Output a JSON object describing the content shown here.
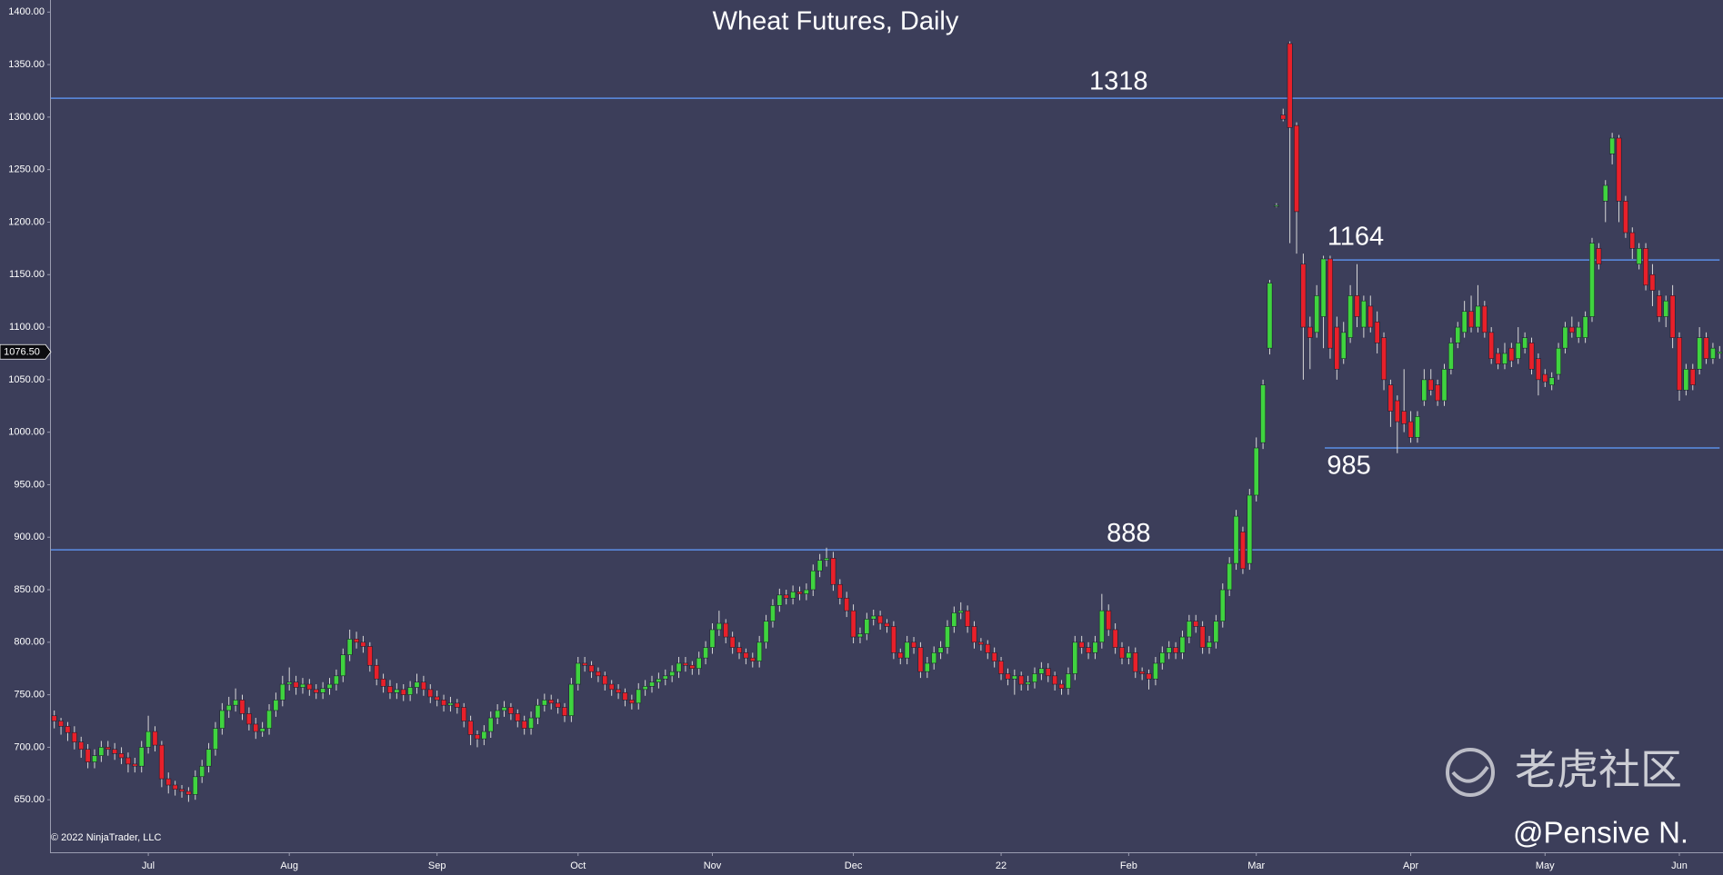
{
  "chart_data": {
    "type": "candlestick",
    "title": "Wheat Futures, Daily",
    "copyright": "© 2022 NinjaTrader, LLC",
    "watermark": "老虎社区",
    "author": "@Pensive N.",
    "up_color": "#3fd43f",
    "down_color": "#e8202a",
    "wick_color": "#d8d8d8",
    "level_color": "#5b8fe6",
    "ylim": [
      600,
      1411.5
    ],
    "yticks": [
      {
        "value": 650,
        "label": "650.00"
      },
      {
        "value": 700,
        "label": "700.00"
      },
      {
        "value": 750,
        "label": "750.00"
      },
      {
        "value": 800,
        "label": "800.00"
      },
      {
        "value": 850,
        "label": "850.00"
      },
      {
        "value": 900,
        "label": "900.00"
      },
      {
        "value": 950,
        "label": "950.00"
      },
      {
        "value": 1000,
        "label": "1000.00"
      },
      {
        "value": 1050,
        "label": "1050.00"
      },
      {
        "value": 1100,
        "label": "1100.00"
      },
      {
        "value": 1150,
        "label": "1150.00"
      },
      {
        "value": 1200,
        "label": "1200.00"
      },
      {
        "value": 1250,
        "label": "1250.00"
      },
      {
        "value": 1300,
        "label": "1300.00"
      },
      {
        "value": 1350,
        "label": "1350.00"
      },
      {
        "value": 1400,
        "label": "1400.00"
      }
    ],
    "xlim": [
      -0.5,
      248.5
    ],
    "xticks": [
      {
        "value": 14,
        "label": "Jul"
      },
      {
        "value": 35,
        "label": "Aug"
      },
      {
        "value": 57,
        "label": "Sep"
      },
      {
        "value": 78,
        "label": "Oct"
      },
      {
        "value": 98,
        "label": "Nov"
      },
      {
        "value": 119,
        "label": "Dec"
      },
      {
        "value": 141,
        "label": "22"
      },
      {
        "value": 160,
        "label": "Feb"
      },
      {
        "value": 179,
        "label": "Mar"
      },
      {
        "value": 202,
        "label": "Apr"
      },
      {
        "value": 222,
        "label": "May"
      },
      {
        "value": 242,
        "label": "Jun"
      }
    ],
    "last_price": {
      "value": 1076.5,
      "label": "1076.50"
    },
    "levels": [
      {
        "value": 1318,
        "label": "1318"
      },
      {
        "value": 888,
        "label": "888"
      },
      {
        "value": 1164,
        "label": "1164"
      },
      {
        "value": 985,
        "label": "985"
      }
    ],
    "candles": [
      [
        730,
        735,
        718,
        725
      ],
      [
        725,
        728,
        712,
        720
      ],
      [
        720,
        724,
        706,
        714
      ],
      [
        714,
        720,
        698,
        705
      ],
      [
        705,
        710,
        690,
        698
      ],
      [
        698,
        703,
        680,
        686
      ],
      [
        686,
        698,
        680,
        692
      ],
      [
        692,
        706,
        686,
        700
      ],
      [
        700,
        706,
        692,
        698
      ],
      [
        698,
        704,
        688,
        694
      ],
      [
        694,
        700,
        684,
        690
      ],
      [
        690,
        695,
        676,
        684
      ],
      [
        684,
        690,
        676,
        682
      ],
      [
        682,
        706,
        676,
        700
      ],
      [
        700,
        730,
        694,
        715
      ],
      [
        715,
        720,
        696,
        702
      ],
      [
        702,
        706,
        662,
        670
      ],
      [
        670,
        676,
        656,
        664
      ],
      [
        664,
        668,
        654,
        660
      ],
      [
        660,
        664,
        652,
        658
      ],
      [
        658,
        662,
        648,
        655
      ],
      [
        655,
        678,
        650,
        672
      ],
      [
        672,
        688,
        666,
        682
      ],
      [
        682,
        704,
        676,
        698
      ],
      [
        698,
        724,
        692,
        718
      ],
      [
        718,
        742,
        712,
        735
      ],
      [
        735,
        748,
        728,
        740
      ],
      [
        740,
        756,
        734,
        745
      ],
      [
        745,
        750,
        726,
        732
      ],
      [
        732,
        738,
        716,
        722
      ],
      [
        722,
        728,
        708,
        715
      ],
      [
        715,
        724,
        710,
        718
      ],
      [
        718,
        741,
        712,
        735
      ],
      [
        735,
        752,
        729,
        745
      ],
      [
        745,
        768,
        739,
        760
      ],
      [
        760,
        776,
        754,
        762
      ],
      [
        762,
        768,
        750,
        757
      ],
      [
        757,
        766,
        751,
        760
      ],
      [
        760,
        765,
        749,
        755
      ],
      [
        755,
        760,
        746,
        752
      ],
      [
        752,
        762,
        746,
        756
      ],
      [
        756,
        766,
        750,
        760
      ],
      [
        760,
        774,
        754,
        768
      ],
      [
        768,
        794,
        762,
        788
      ],
      [
        788,
        812,
        782,
        803
      ],
      [
        803,
        810,
        794,
        800
      ],
      [
        800,
        806,
        790,
        796
      ],
      [
        796,
        800,
        772,
        778
      ],
      [
        778,
        784,
        759,
        765
      ],
      [
        765,
        770,
        752,
        758
      ],
      [
        758,
        764,
        746,
        752
      ],
      [
        752,
        761,
        746,
        755
      ],
      [
        755,
        760,
        744,
        750
      ],
      [
        750,
        763,
        744,
        757
      ],
      [
        757,
        770,
        751,
        762
      ],
      [
        762,
        768,
        749,
        755
      ],
      [
        755,
        760,
        742,
        748
      ],
      [
        748,
        754,
        739,
        745
      ],
      [
        745,
        750,
        734,
        740
      ],
      [
        740,
        748,
        734,
        742
      ],
      [
        742,
        746,
        732,
        738
      ],
      [
        738,
        742,
        719,
        725
      ],
      [
        725,
        730,
        702,
        712
      ],
      [
        712,
        716,
        700,
        708
      ],
      [
        708,
        721,
        702,
        715
      ],
      [
        715,
        734,
        709,
        728
      ],
      [
        728,
        741,
        722,
        735
      ],
      [
        735,
        744,
        729,
        738
      ],
      [
        738,
        742,
        726,
        732
      ],
      [
        732,
        736,
        719,
        725
      ],
      [
        725,
        730,
        712,
        718
      ],
      [
        718,
        734,
        712,
        728
      ],
      [
        728,
        746,
        722,
        740
      ],
      [
        740,
        751,
        734,
        745
      ],
      [
        745,
        750,
        736,
        742
      ],
      [
        742,
        746,
        732,
        738
      ],
      [
        738,
        742,
        724,
        730
      ],
      [
        730,
        766,
        724,
        760
      ],
      [
        760,
        786,
        754,
        780
      ],
      [
        780,
        786,
        772,
        778
      ],
      [
        778,
        782,
        766,
        772
      ],
      [
        772,
        776,
        762,
        768
      ],
      [
        768,
        772,
        754,
        760
      ],
      [
        760,
        764,
        749,
        755
      ],
      [
        755,
        760,
        746,
        752
      ],
      [
        752,
        756,
        739,
        745
      ],
      [
        745,
        750,
        736,
        742
      ],
      [
        742,
        761,
        736,
        755
      ],
      [
        755,
        764,
        749,
        758
      ],
      [
        758,
        768,
        752,
        762
      ],
      [
        762,
        771,
        756,
        765
      ],
      [
        765,
        774,
        759,
        768
      ],
      [
        768,
        778,
        762,
        772
      ],
      [
        772,
        786,
        766,
        780
      ],
      [
        780,
        786,
        772,
        778
      ],
      [
        778,
        782,
        769,
        775
      ],
      [
        775,
        791,
        769,
        785
      ],
      [
        785,
        801,
        779,
        795
      ],
      [
        795,
        818,
        789,
        812
      ],
      [
        812,
        830,
        806,
        818
      ],
      [
        818,
        822,
        799,
        805
      ],
      [
        805,
        810,
        789,
        795
      ],
      [
        795,
        800,
        784,
        790
      ],
      [
        790,
        794,
        779,
        785
      ],
      [
        785,
        790,
        776,
        782
      ],
      [
        782,
        806,
        776,
        800
      ],
      [
        800,
        826,
        794,
        820
      ],
      [
        820,
        841,
        814,
        835
      ],
      [
        835,
        851,
        829,
        845
      ],
      [
        845,
        850,
        836,
        842
      ],
      [
        842,
        854,
        836,
        848
      ],
      [
        848,
        853,
        840,
        846
      ],
      [
        846,
        856,
        840,
        850
      ],
      [
        850,
        874,
        844,
        868
      ],
      [
        868,
        884,
        862,
        878
      ],
      [
        878,
        890,
        872,
        880
      ],
      [
        880,
        886,
        849,
        855
      ],
      [
        855,
        860,
        836,
        842
      ],
      [
        842,
        848,
        824,
        830
      ],
      [
        830,
        836,
        799,
        805
      ],
      [
        805,
        814,
        799,
        808
      ],
      [
        808,
        828,
        802,
        822
      ],
      [
        822,
        831,
        816,
        825
      ],
      [
        825,
        830,
        812,
        818
      ],
      [
        818,
        822,
        809,
        815
      ],
      [
        815,
        820,
        784,
        790
      ],
      [
        790,
        794,
        779,
        785
      ],
      [
        785,
        806,
        779,
        800
      ],
      [
        800,
        805,
        789,
        795
      ],
      [
        795,
        800,
        766,
        772
      ],
      [
        772,
        786,
        766,
        780
      ],
      [
        780,
        796,
        774,
        790
      ],
      [
        790,
        801,
        784,
        795
      ],
      [
        795,
        821,
        789,
        815
      ],
      [
        815,
        834,
        809,
        828
      ],
      [
        828,
        838,
        822,
        830
      ],
      [
        830,
        835,
        809,
        815
      ],
      [
        815,
        820,
        794,
        800
      ],
      [
        800,
        804,
        792,
        798
      ],
      [
        798,
        802,
        784,
        790
      ],
      [
        790,
        795,
        776,
        782
      ],
      [
        782,
        786,
        764,
        770
      ],
      [
        770,
        775,
        759,
        765
      ],
      [
        765,
        774,
        750,
        768
      ],
      [
        768,
        772,
        754,
        760
      ],
      [
        760,
        768,
        754,
        762
      ],
      [
        762,
        776,
        756,
        770
      ],
      [
        770,
        781,
        764,
        775
      ],
      [
        775,
        780,
        762,
        768
      ],
      [
        768,
        772,
        754,
        760
      ],
      [
        760,
        764,
        750,
        756
      ],
      [
        756,
        776,
        750,
        770
      ],
      [
        770,
        806,
        764,
        800
      ],
      [
        800,
        806,
        789,
        795
      ],
      [
        795,
        800,
        784,
        790
      ],
      [
        790,
        806,
        784,
        800
      ],
      [
        800,
        846,
        794,
        830
      ],
      [
        830,
        836,
        806,
        812
      ],
      [
        812,
        818,
        789,
        795
      ],
      [
        795,
        800,
        779,
        785
      ],
      [
        785,
        796,
        779,
        790
      ],
      [
        790,
        795,
        766,
        772
      ],
      [
        772,
        776,
        764,
        770
      ],
      [
        770,
        774,
        755,
        765
      ],
      [
        765,
        786,
        759,
        780
      ],
      [
        780,
        796,
        774,
        790
      ],
      [
        790,
        801,
        784,
        795
      ],
      [
        795,
        800,
        784,
        790
      ],
      [
        790,
        811,
        784,
        805
      ],
      [
        805,
        826,
        799,
        820
      ],
      [
        820,
        826,
        809,
        815
      ],
      [
        815,
        820,
        789,
        795
      ],
      [
        795,
        806,
        789,
        800
      ],
      [
        800,
        826,
        794,
        820
      ],
      [
        820,
        856,
        814,
        850
      ],
      [
        850,
        881,
        844,
        875
      ],
      [
        875,
        926,
        869,
        920
      ],
      [
        905,
        910,
        865,
        870
      ],
      [
        875,
        946,
        869,
        940
      ],
      [
        940,
        995,
        934,
        985
      ],
      [
        990,
        1050,
        984,
        1045
      ],
      [
        1080,
        1145,
        1074,
        1142
      ],
      [
        1216,
        1218,
        1214,
        1216
      ],
      [
        1302,
        1308,
        1296,
        1298
      ],
      [
        1370,
        1372,
        1180,
        1290
      ],
      [
        1292,
        1295,
        1170,
        1210
      ],
      [
        1160,
        1170,
        1050,
        1100
      ],
      [
        1100,
        1110,
        1060,
        1090
      ],
      [
        1095,
        1140,
        1090,
        1130
      ],
      [
        1110,
        1168,
        1080,
        1165
      ],
      [
        1165,
        1168,
        1070,
        1080
      ],
      [
        1100,
        1110,
        1050,
        1060
      ],
      [
        1070,
        1105,
        1065,
        1095
      ],
      [
        1090,
        1140,
        1085,
        1130
      ],
      [
        1130,
        1160,
        1100,
        1110
      ],
      [
        1100,
        1130,
        1090,
        1125
      ],
      [
        1120,
        1130,
        1095,
        1100
      ],
      [
        1105,
        1115,
        1075,
        1085
      ],
      [
        1090,
        1095,
        1040,
        1050
      ],
      [
        1045,
        1050,
        1005,
        1020
      ],
      [
        1030,
        1035,
        980,
        1010
      ],
      [
        1020,
        1060,
        1000,
        1008
      ],
      [
        1010,
        1020,
        990,
        995
      ],
      [
        995,
        1020,
        990,
        1015
      ],
      [
        1030,
        1060,
        1025,
        1050
      ],
      [
        1050,
        1060,
        1035,
        1040
      ],
      [
        1045,
        1050,
        1025,
        1030
      ],
      [
        1030,
        1065,
        1025,
        1060
      ],
      [
        1060,
        1090,
        1055,
        1085
      ],
      [
        1085,
        1105,
        1080,
        1100
      ],
      [
        1095,
        1125,
        1090,
        1115
      ],
      [
        1115,
        1130,
        1095,
        1100
      ],
      [
        1100,
        1140,
        1095,
        1120
      ],
      [
        1120,
        1125,
        1090,
        1095
      ],
      [
        1095,
        1100,
        1065,
        1070
      ],
      [
        1075,
        1080,
        1060,
        1065
      ],
      [
        1065,
        1085,
        1060,
        1075
      ],
      [
        1080,
        1085,
        1062,
        1068
      ],
      [
        1070,
        1100,
        1065,
        1085
      ],
      [
        1080,
        1095,
        1075,
        1090
      ],
      [
        1085,
        1090,
        1055,
        1060
      ],
      [
        1070,
        1075,
        1035,
        1050
      ],
      [
        1055,
        1060,
        1043,
        1048
      ],
      [
        1045,
        1057,
        1040,
        1052
      ],
      [
        1055,
        1085,
        1050,
        1080
      ],
      [
        1080,
        1105,
        1075,
        1100
      ],
      [
        1100,
        1110,
        1090,
        1095
      ],
      [
        1090,
        1105,
        1085,
        1100
      ],
      [
        1090,
        1115,
        1085,
        1110
      ],
      [
        1110,
        1185,
        1105,
        1180
      ],
      [
        1175,
        1180,
        1155,
        1160
      ],
      [
        1220,
        1240,
        1200,
        1235
      ],
      [
        1265,
        1285,
        1255,
        1280
      ],
      [
        1280,
        1283,
        1200,
        1220
      ],
      [
        1220,
        1225,
        1185,
        1190
      ],
      [
        1190,
        1195,
        1165,
        1175
      ],
      [
        1160,
        1180,
        1155,
        1175
      ],
      [
        1175,
        1180,
        1135,
        1140
      ],
      [
        1150,
        1160,
        1120,
        1135
      ],
      [
        1130,
        1135,
        1105,
        1110
      ],
      [
        1110,
        1130,
        1100,
        1125
      ],
      [
        1130,
        1140,
        1080,
        1090
      ],
      [
        1090,
        1095,
        1030,
        1040
      ],
      [
        1040,
        1065,
        1035,
        1060
      ],
      [
        1060,
        1065,
        1040,
        1045
      ],
      [
        1060,
        1100,
        1055,
        1090
      ],
      [
        1090,
        1095,
        1065,
        1070
      ],
      [
        1070,
        1085,
        1065,
        1080
      ],
      [
        1075,
        1082,
        1070,
        1076.5
      ]
    ]
  }
}
